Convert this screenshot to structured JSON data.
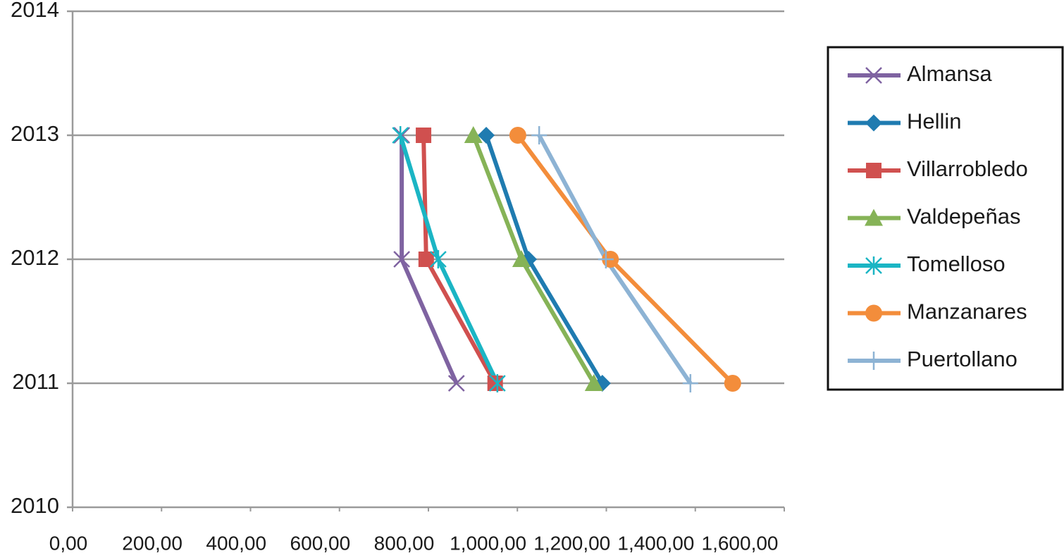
{
  "chart_data": {
    "type": "line",
    "orientation": "horizontal",
    "y": [
      2011,
      2012,
      2013
    ],
    "ylim": [
      2010,
      2014
    ],
    "yticks": [
      2010,
      2011,
      2012,
      2013,
      2014
    ],
    "xlim": [
      0,
      1600
    ],
    "xticks": [
      {
        "value": 0,
        "label": "0,00"
      },
      {
        "value": 200,
        "label": "200,00"
      },
      {
        "value": 400,
        "label": "400,00"
      },
      {
        "value": 600,
        "label": "600,00"
      },
      {
        "value": 800,
        "label": "800,00"
      },
      {
        "value": 1000,
        "label": "1,000,00"
      },
      {
        "value": 1200,
        "label": "1,200,00"
      },
      {
        "value": 1400,
        "label": "1,400,00"
      },
      {
        "value": 1600,
        "label": "1,600,00"
      }
    ],
    "grid": true,
    "legend": "right",
    "series": [
      {
        "name": "Almansa",
        "color": "#7f63a1",
        "marker": "x",
        "values": [
          863,
          740,
          740
        ]
      },
      {
        "name": "Hellin",
        "color": "#1f7bb0",
        "marker": "diamond",
        "values": [
          1191,
          1025,
          930
        ]
      },
      {
        "name": "Villarrobledo",
        "color": "#d0504f",
        "marker": "square",
        "values": [
          950,
          795,
          789
        ]
      },
      {
        "name": "Valdepeñas",
        "color": "#86b357",
        "marker": "triangle",
        "values": [
          1172,
          1009,
          901
        ]
      },
      {
        "name": "Tomelloso",
        "color": "#1bb5c4",
        "marker": "asterisk",
        "values": [
          955,
          822,
          737
        ]
      },
      {
        "name": "Manzanares",
        "color": "#f38d3b",
        "marker": "circle",
        "values": [
          1484,
          1209,
          1001
        ]
      },
      {
        "name": "Puertollano",
        "color": "#8db3d4",
        "marker": "plus",
        "values": [
          1389,
          1199,
          1049
        ]
      }
    ]
  }
}
